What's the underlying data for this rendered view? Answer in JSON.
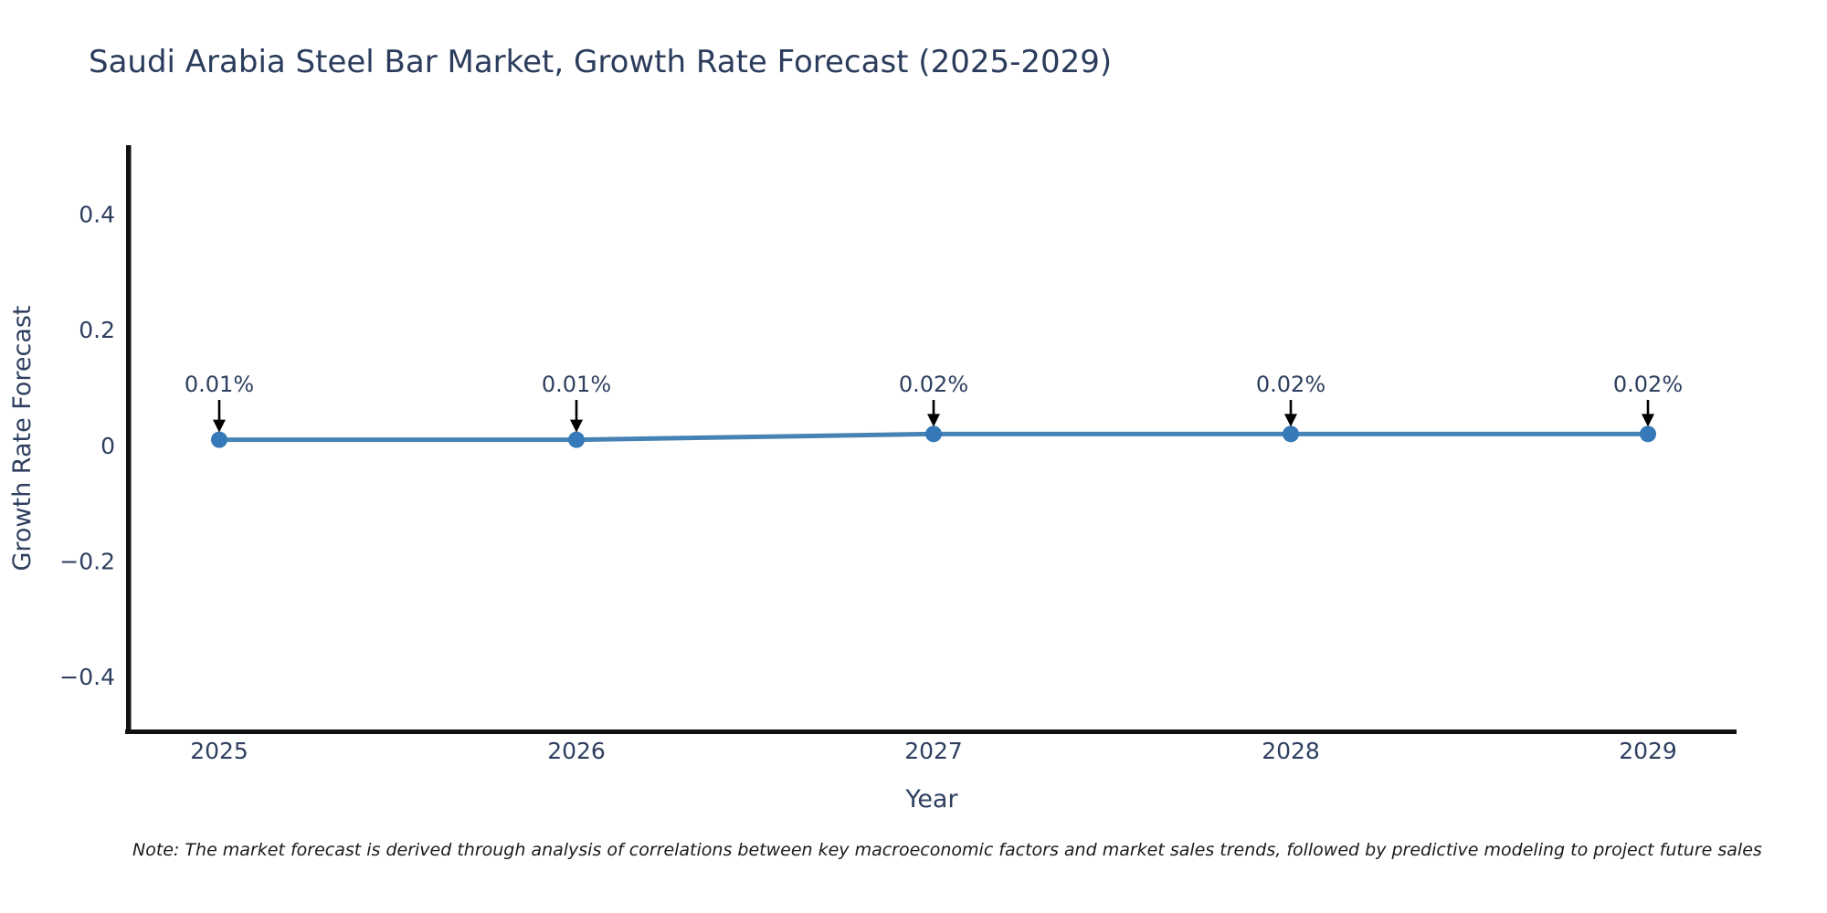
{
  "chart_data": {
    "type": "line",
    "title": "Saudi Arabia Steel Bar Market, Growth Rate Forecast (2025-2029)",
    "xlabel": "Year",
    "ylabel": "Growth Rate Forecast",
    "x": [
      2025,
      2026,
      2027,
      2028,
      2029
    ],
    "xtick_labels": [
      "2025",
      "2026",
      "2027",
      "2028",
      "2029"
    ],
    "series": [
      {
        "name": "Growth Rate Forecast",
        "values": [
          0.01,
          0.01,
          0.02,
          0.02,
          0.02
        ]
      }
    ],
    "point_labels": [
      "0.01%",
      "0.01%",
      "0.02%",
      "0.02%",
      "0.02%"
    ],
    "yticks": [
      0.4,
      0.2,
      0,
      -0.2,
      -0.4
    ],
    "ytick_labels": [
      "0.4",
      "0.2",
      "0",
      "−0.2",
      "−0.4"
    ],
    "ylim": [
      -0.51,
      0.52
    ],
    "xlim": [
      2024.74,
      2029.26
    ],
    "grid": false,
    "legend_position": "none",
    "colors": {
      "line": "#4682b4",
      "marker": "#3579b8",
      "arrow": "#000000",
      "axis": "#111111",
      "tick_text": "#2e3f5f",
      "title_text": "#2b3c5c",
      "note_text": "#1a1a1a",
      "background": "#ffffff"
    }
  },
  "note": {
    "text": "Note: The market forecast is derived through analysis of correlations between key macroeconomic factors and market sales trends, followed by predictive modeling to project future sales"
  }
}
